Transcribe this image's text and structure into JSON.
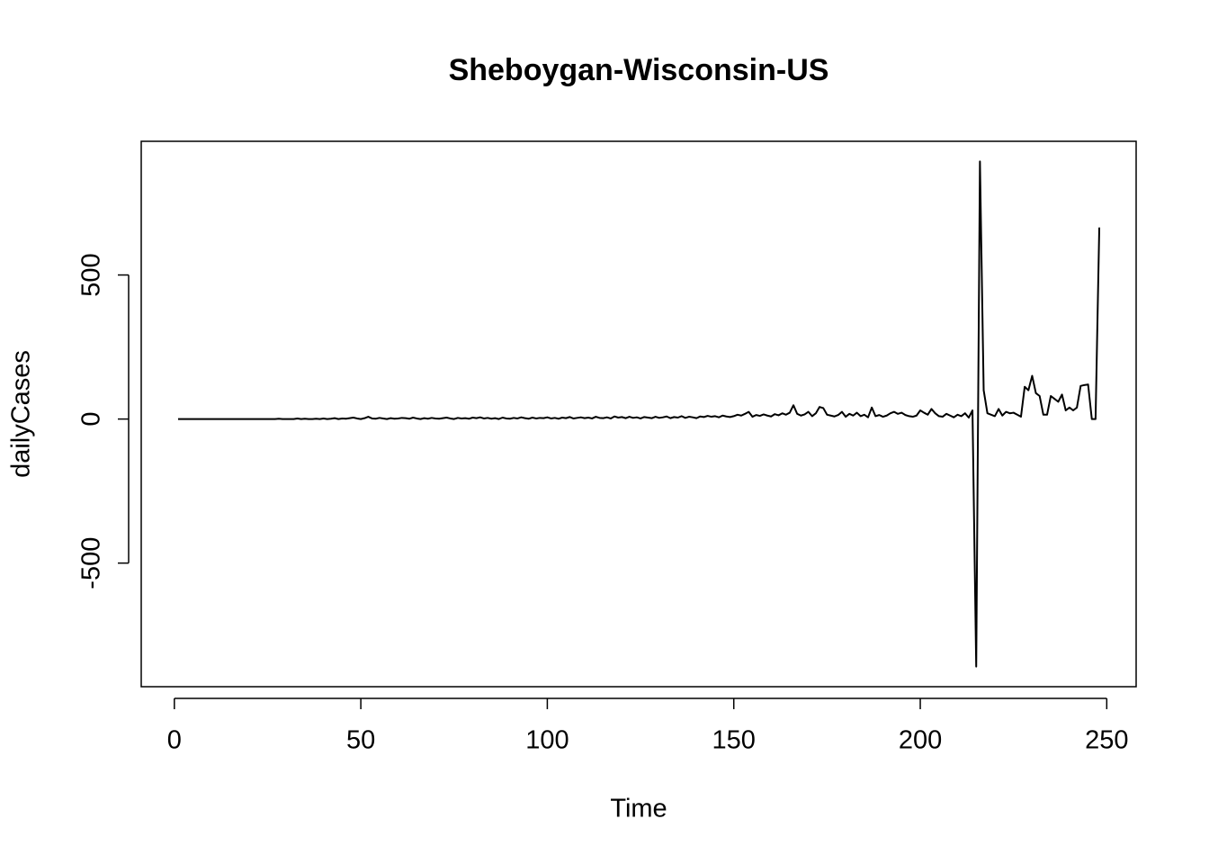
{
  "chart_data": {
    "type": "line",
    "title": "Sheboygan-Wisconsin-US",
    "xlabel": "Time",
    "ylabel": "dailyCases",
    "x": [
      1,
      2,
      3,
      4,
      5,
      6,
      7,
      8,
      9,
      10,
      11,
      12,
      13,
      14,
      15,
      16,
      17,
      18,
      19,
      20,
      21,
      22,
      23,
      24,
      25,
      26,
      27,
      28,
      29,
      30,
      31,
      32,
      33,
      34,
      35,
      36,
      37,
      38,
      39,
      40,
      41,
      42,
      43,
      44,
      45,
      46,
      47,
      48,
      49,
      50,
      51,
      52,
      53,
      54,
      55,
      56,
      57,
      58,
      59,
      60,
      61,
      62,
      63,
      64,
      65,
      66,
      67,
      68,
      69,
      70,
      71,
      72,
      73,
      74,
      75,
      76,
      77,
      78,
      79,
      80,
      81,
      82,
      83,
      84,
      85,
      86,
      87,
      88,
      89,
      90,
      91,
      92,
      93,
      94,
      95,
      96,
      97,
      98,
      99,
      100,
      101,
      102,
      103,
      104,
      105,
      106,
      107,
      108,
      109,
      110,
      111,
      112,
      113,
      114,
      115,
      116,
      117,
      118,
      119,
      120,
      121,
      122,
      123,
      124,
      125,
      126,
      127,
      128,
      129,
      130,
      131,
      132,
      133,
      134,
      135,
      136,
      137,
      138,
      139,
      140,
      141,
      142,
      143,
      144,
      145,
      146,
      147,
      148,
      149,
      150,
      151,
      152,
      153,
      154,
      155,
      156,
      157,
      158,
      159,
      160,
      161,
      162,
      163,
      164,
      165,
      166,
      167,
      168,
      169,
      170,
      171,
      172,
      173,
      174,
      175,
      176,
      177,
      178,
      179,
      180,
      181,
      182,
      183,
      184,
      185,
      186,
      187,
      188,
      189,
      190,
      191,
      192,
      193,
      194,
      195,
      196,
      197,
      198,
      199,
      200,
      201,
      202,
      203,
      204,
      205,
      206,
      207,
      208,
      209,
      210,
      211,
      212,
      213,
      214,
      215,
      216,
      217,
      218,
      219,
      220,
      221,
      222,
      223,
      224,
      225,
      226,
      227,
      228,
      229,
      230,
      231,
      232,
      233,
      234,
      235,
      236,
      237,
      238,
      239,
      240,
      241,
      242,
      243,
      244,
      245,
      246,
      247,
      248
    ],
    "series": [
      {
        "name": "dailyCases",
        "color": "#000000",
        "values": [
          0,
          0,
          0,
          0,
          0,
          0,
          0,
          0,
          0,
          0,
          0,
          0,
          0,
          0,
          0,
          0,
          0,
          0,
          0,
          0,
          0,
          0,
          0,
          0,
          0,
          0,
          0,
          1,
          0,
          0,
          0,
          0,
          2,
          0,
          1,
          0,
          0,
          1,
          0,
          2,
          0,
          1,
          3,
          0,
          2,
          1,
          3,
          5,
          2,
          0,
          3,
          8,
          2,
          1,
          4,
          2,
          0,
          3,
          1,
          2,
          4,
          3,
          1,
          5,
          2,
          0,
          3,
          1,
          4,
          2,
          1,
          3,
          5,
          2,
          0,
          4,
          2,
          3,
          1,
          5,
          3,
          6,
          2,
          4,
          1,
          3,
          0,
          5,
          2,
          1,
          4,
          2,
          6,
          3,
          1,
          5,
          2,
          4,
          3,
          6,
          2,
          4,
          1,
          5,
          3,
          7,
          2,
          4,
          6,
          3,
          5,
          2,
          8,
          4,
          3,
          6,
          2,
          9,
          5,
          7,
          3,
          8,
          4,
          6,
          2,
          7,
          5,
          3,
          8,
          4,
          6,
          9,
          3,
          7,
          5,
          10,
          4,
          8,
          6,
          3,
          9,
          7,
          11,
          8,
          10,
          6,
          12,
          9,
          7,
          10,
          15,
          12,
          18,
          25,
          8,
          14,
          11,
          16,
          12,
          9,
          17,
          13,
          20,
          15,
          22,
          48,
          18,
          12,
          16,
          25,
          10,
          20,
          42,
          38,
          15,
          12,
          9,
          14,
          25,
          8,
          18,
          12,
          22,
          10,
          15,
          6,
          40,
          10,
          14,
          8,
          12,
          20,
          25,
          18,
          22,
          14,
          10,
          8,
          12,
          30,
          22,
          15,
          35,
          20,
          10,
          8,
          18,
          12,
          6,
          15,
          10,
          20,
          5,
          30,
          -859,
          894,
          100,
          20,
          15,
          10,
          35,
          12,
          25,
          20,
          22,
          15,
          8,
          112,
          100,
          150,
          90,
          80,
          15,
          15,
          80,
          70,
          60,
          85,
          30,
          40,
          30,
          40,
          115,
          118,
          120,
          0,
          0,
          665
        ]
      }
    ],
    "xlim": [
      -8.88,
      257.88
    ],
    "xticks": [
      0,
      50,
      100,
      150,
      200,
      250
    ],
    "ylim": [
      -929,
      964
    ],
    "yticks": [
      -500,
      0,
      500
    ]
  }
}
